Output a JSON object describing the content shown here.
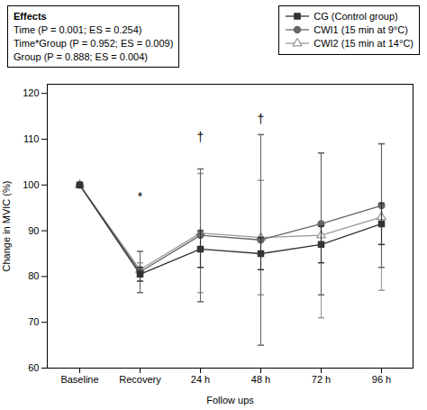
{
  "chart_data": {
    "type": "line",
    "xlabel": "Follow ups",
    "ylabel": "Change in MVIC (%)",
    "categories": [
      "Baseline",
      "Recovery",
      "24 h",
      "48 h",
      "72 h",
      "96 h"
    ],
    "series": [
      {
        "name": "CG (Control group)",
        "color": "#333333",
        "marker": "square",
        "values": [
          100.0,
          80.5,
          86.0,
          85.0,
          87.0,
          91.5
        ],
        "sd": [
          0.0,
          1.5,
          4.0,
          3.5,
          4.0,
          4.5
        ]
      },
      {
        "name": "CWI1 (15 min at 9°C)",
        "color": "#666666",
        "marker": "circle",
        "values": [
          100.0,
          81.0,
          89.0,
          88.0,
          91.5,
          95.5
        ],
        "sd": [
          0.0,
          4.5,
          14.5,
          23.0,
          15.5,
          13.5
        ]
      },
      {
        "name": "CWI2 (15 min at 14°C)",
        "color": "#999999",
        "marker": "triangle_open",
        "values": [
          100.0,
          81.5,
          89.5,
          88.5,
          89.0,
          93.0
        ],
        "sd": [
          0.0,
          1.5,
          13.0,
          12.5,
          18.0,
          16.0
        ]
      }
    ],
    "ylim": [
      60,
      122
    ],
    "yticks": [
      60,
      70,
      80,
      90,
      100,
      110,
      120
    ],
    "grid": false,
    "legend": "upper left",
    "annotations": [
      {
        "x": "Recovery",
        "y": 96.5,
        "text": "*"
      },
      {
        "x": "24 h",
        "y": 109.5,
        "text": "†"
      },
      {
        "x": "48 h",
        "y": 113.5,
        "text": "†"
      }
    ],
    "text_box": {
      "title": "Effects",
      "lines": [
        "Time (P = 0.001; ES = 0.254)",
        "Time*Group (P = 0.952; ES = 0.009)",
        "Group (P = 0.888; ES = 0.004)"
      ]
    }
  }
}
